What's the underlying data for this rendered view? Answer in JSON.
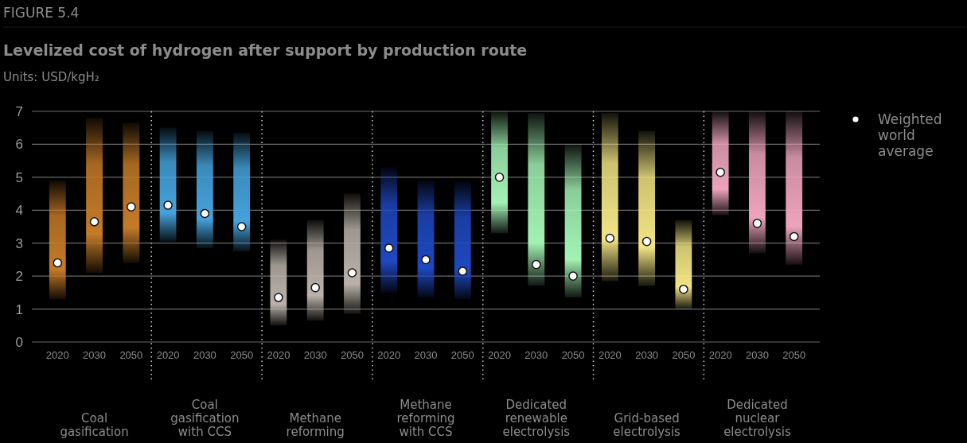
{
  "chart_data": {
    "type": "bar",
    "title": "Levelized cost of hydrogen after support by production route",
    "subtitle": "Units: USD/kgH₂",
    "annotations": [
      "FIGURE 5.4",
      "Coal gasification",
      "Coal gasification with CCS",
      "Methane reforming",
      "Methane reforming with CCS",
      "Dedicated renewable electrolysis",
      "Grid-based electrolysis",
      "Dedicated nuclear electrolysis"
    ],
    "categories": [
      "2020",
      "2030",
      "2050",
      "2020",
      "2030",
      "2050",
      "2020",
      "2030",
      "2050",
      "2020",
      "2030",
      "2050",
      "2020",
      "2030",
      "2050",
      "2020",
      "2030",
      "2050",
      "2020",
      "2030",
      "2050"
    ],
    "series": [
      {
        "base": [
          1.3,
          2.1,
          2.4,
          3.05,
          2.85,
          2.75,
          0.5,
          0.65,
          0.85,
          1.5,
          1.35,
          1.3,
          3.3,
          1.7,
          1.35,
          1.85,
          1.7,
          1.0,
          3.85,
          2.7,
          2.35
        ],
        "colors": [
          "#c47a28",
          "#c47a28",
          "#c47a28",
          "#45a2dc",
          "#45a2dc",
          "#45a2dc",
          "#bab2aa",
          "#bab2aa",
          "#bab2aa",
          "#1f48c0",
          "#1f48c0",
          "#1f48c0",
          "#a2f2b4",
          "#a2f2b4",
          "#a2f2b4",
          "#f2e484",
          "#f2e484",
          "#f2e484",
          "#eca4bc",
          "#eca4bc",
          "#eca4bc"
        ],
        "values": [
          3.6,
          4.7,
          4.25,
          3.45,
          3.55,
          3.6,
          2.6,
          3.05,
          3.65,
          3.8,
          3.55,
          3.55,
          3.7,
          5.25,
          4.65,
          5.1,
          4.7,
          2.7,
          3.15,
          4.3,
          4.65
        ]
      },
      {
        "type": "scatter",
        "name": "Weighted world average",
        "color": "#ffffff",
        "values": [
          2.4,
          3.65,
          4.1,
          4.15,
          3.9,
          3.5,
          1.35,
          1.65,
          2.1,
          2.85,
          2.5,
          2.15,
          5.0,
          2.35,
          2.0,
          3.15,
          3.05,
          1.6,
          5.15,
          3.6,
          3.2
        ]
      }
    ],
    "ylim": [
      0,
      7
    ],
    "yticks": [
      0,
      1,
      2,
      3,
      4,
      5,
      6,
      7
    ],
    "grid": "y",
    "legend": "top right",
    "marker": "circle"
  }
}
